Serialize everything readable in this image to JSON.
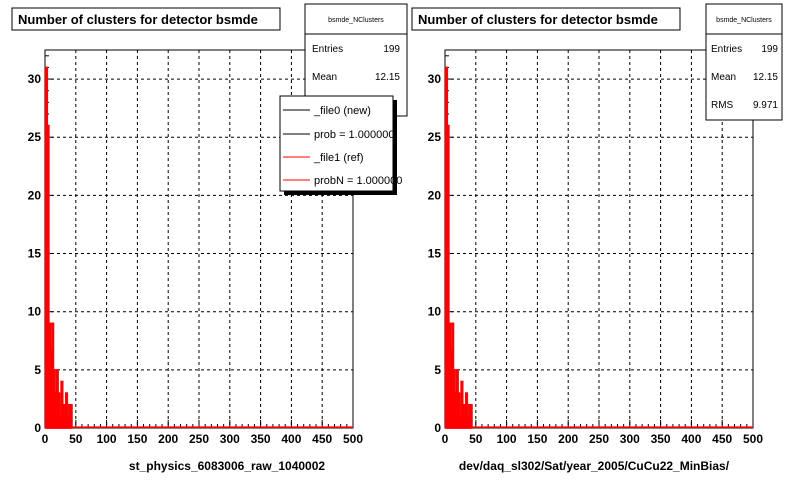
{
  "chart_data": [
    {
      "type": "bar",
      "title": "Number of clusters for detector bsmde",
      "xlabel": "st_physics_6083006_raw_1040002",
      "ylabel": "",
      "xlim": [
        0,
        500
      ],
      "ylim": [
        0,
        32.5
      ],
      "xticks": [
        0,
        50,
        100,
        150,
        200,
        250,
        300,
        350,
        400,
        450,
        500
      ],
      "yticks": [
        0,
        5,
        10,
        15,
        20,
        25,
        30
      ],
      "grid": true,
      "stats": {
        "name": "bsmde_NClusters",
        "entries_label": "Entries",
        "entries": "199",
        "mean_label": "Mean",
        "mean": "12.15"
      },
      "legend": {
        "placement": "top-right",
        "entries": [
          {
            "label": "_file0 (new)",
            "color": "#000000"
          },
          {
            "label": "prob = 1.000000",
            "color": "#000000"
          },
          {
            "label": "_file1 (ref)",
            "color": "#ff0000"
          },
          {
            "label": "probN = 1.000000",
            "color": "#ff0000"
          }
        ]
      },
      "series": [
        {
          "color": "#ff0000",
          "bin_width": 2.5,
          "x": [
            2.5,
            5,
            7.5,
            10,
            12.5,
            15,
            17.5,
            20,
            22.5,
            25,
            27.5,
            30,
            32.5,
            35,
            37.5,
            40,
            42.5
          ],
          "values": [
            31,
            26,
            9,
            7,
            9,
            5,
            3,
            5,
            3,
            1,
            4,
            1,
            2,
            3,
            1,
            2,
            2
          ]
        }
      ]
    },
    {
      "type": "bar",
      "title": "Number of clusters for detector bsmde",
      "xlabel": "dev/daq_sl302/Sat/year_2005/CuCu22_MinBias/",
      "ylabel": "",
      "xlim": [
        0,
        500
      ],
      "ylim": [
        0,
        32.5
      ],
      "xticks": [
        0,
        50,
        100,
        150,
        200,
        250,
        300,
        350,
        400,
        450,
        500
      ],
      "yticks": [
        0,
        5,
        10,
        15,
        20,
        25,
        30
      ],
      "grid": true,
      "stats": {
        "name": "bsmde_NClusters",
        "entries_label": "Entries",
        "entries": "199",
        "mean_label": "Mean",
        "mean": "12.15",
        "rms_label": "RMS",
        "rms": "9.971"
      },
      "series": [
        {
          "color": "#ff0000",
          "bin_width": 2.5,
          "x": [
            2.5,
            5,
            7.5,
            10,
            12.5,
            15,
            17.5,
            20,
            22.5,
            25,
            27.5,
            30,
            32.5,
            35,
            37.5,
            40,
            42.5
          ],
          "values": [
            31,
            26,
            9,
            7,
            9,
            5,
            3,
            5,
            3,
            1,
            4,
            1,
            2,
            3,
            1,
            2,
            2
          ]
        }
      ]
    }
  ]
}
